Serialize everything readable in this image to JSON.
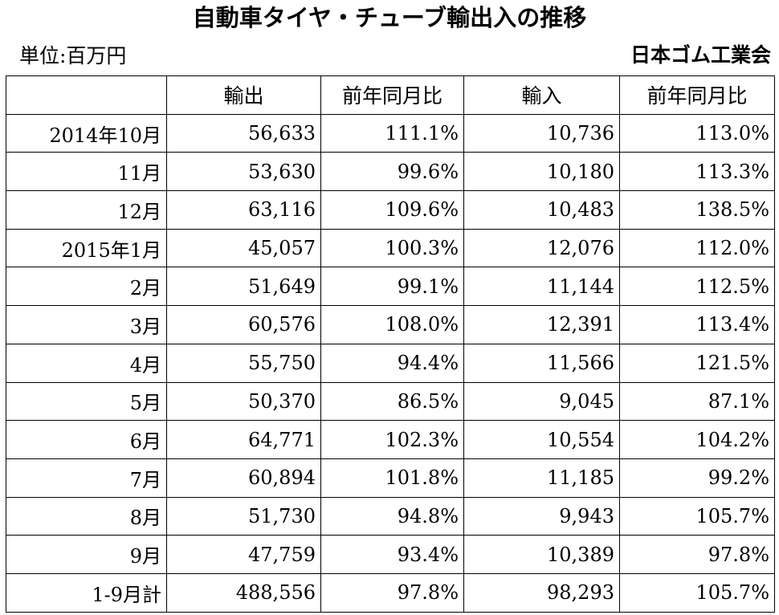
{
  "header": {
    "title": "自動車タイヤ・チューブ輸出入の推移",
    "unit": "単位:百万円",
    "source": "日本ゴム工業会"
  },
  "chart_data": {
    "type": "table",
    "columns": [
      "",
      "輸出",
      "前年同月比",
      "輸入",
      "前年同月比"
    ],
    "rows": [
      [
        "2014年10月",
        "56,633",
        "111.1%",
        "10,736",
        "113.0%"
      ],
      [
        "11月",
        "53,630",
        "99.6%",
        "10,180",
        "113.3%"
      ],
      [
        "12月",
        "63,116",
        "109.6%",
        "10,483",
        "138.5%"
      ],
      [
        "2015年1月",
        "45,057",
        "100.3%",
        "12,076",
        "112.0%"
      ],
      [
        "2月",
        "51,649",
        "99.1%",
        "11,144",
        "112.5%"
      ],
      [
        "3月",
        "60,576",
        "108.0%",
        "12,391",
        "113.4%"
      ],
      [
        "4月",
        "55,750",
        "94.4%",
        "11,566",
        "121.5%"
      ],
      [
        "5月",
        "50,370",
        "86.5%",
        "9,045",
        "87.1%"
      ],
      [
        "6月",
        "64,771",
        "102.3%",
        "10,554",
        "104.2%"
      ],
      [
        "7月",
        "60,894",
        "101.8%",
        "11,185",
        "99.2%"
      ],
      [
        "8月",
        "51,730",
        "94.8%",
        "9,943",
        "105.7%"
      ],
      [
        "9月",
        "47,759",
        "93.4%",
        "10,389",
        "97.8%"
      ],
      [
        "1-9月計",
        "488,556",
        "97.8%",
        "98,293",
        "105.7%"
      ]
    ]
  }
}
